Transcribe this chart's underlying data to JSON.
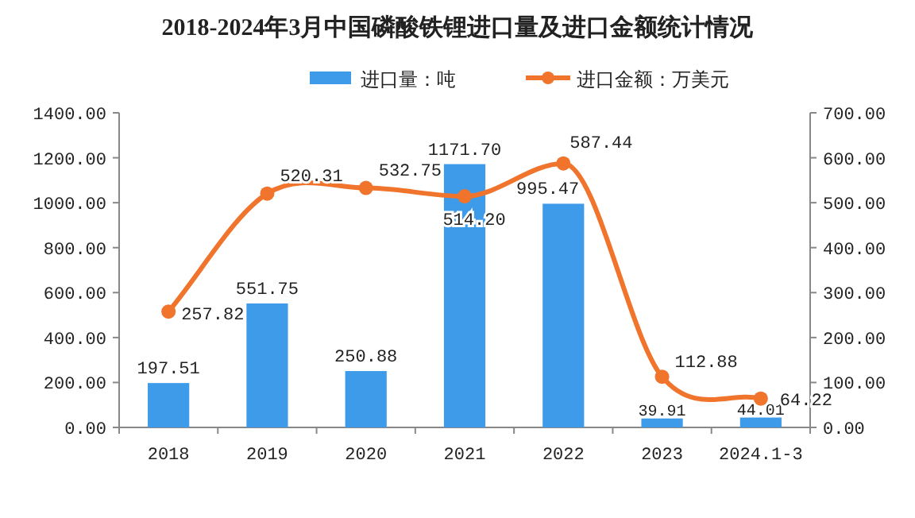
{
  "chart_data": {
    "type": "bar",
    "title": "2018-2024年3月中国磷酸铁锂进口量及进口金额统计情况",
    "categories": [
      "2018",
      "2019",
      "2020",
      "2021",
      "2022",
      "2023",
      "2024.1-3"
    ],
    "series": [
      {
        "name": "进口量：吨",
        "color": "#3d9be9",
        "values": [
          197.51,
          551.75,
          250.88,
          1171.7,
          995.47,
          39.91,
          44.01
        ],
        "value_labels": [
          "197.51",
          "551.75",
          "250.88",
          "1171.70",
          "995.47",
          "39.91",
          "44.01"
        ]
      },
      {
        "name": "进口金额：万美元",
        "type": "line",
        "axis": "y2",
        "marker": "circle",
        "color": "#f0742c",
        "values": [
          257.82,
          520.31,
          532.75,
          514.2,
          587.44,
          112.88,
          64.22
        ],
        "value_labels": [
          "257.82",
          "520.31",
          "532.75",
          "514.20",
          "587.44",
          "112.88",
          "64.22"
        ]
      }
    ],
    "ylim": [
      0,
      1400
    ],
    "yticks": [
      {
        "value": 0,
        "label": "0.00"
      },
      {
        "value": 200,
        "label": "200.00"
      },
      {
        "value": 400,
        "label": "400.00"
      },
      {
        "value": 600,
        "label": "600.00"
      },
      {
        "value": 800,
        "label": "800.00"
      },
      {
        "value": 1000,
        "label": "1000.00"
      },
      {
        "value": 1200,
        "label": "1200.00"
      },
      {
        "value": 1400,
        "label": "1400.00"
      }
    ],
    "y2lim": [
      0,
      700
    ],
    "y2ticks": [
      {
        "value": 0,
        "label": "0.00"
      },
      {
        "value": 100,
        "label": "100.00"
      },
      {
        "value": 200,
        "label": "200.00"
      },
      {
        "value": 300,
        "label": "300.00"
      },
      {
        "value": 400,
        "label": "400.00"
      },
      {
        "value": 500,
        "label": "500.00"
      },
      {
        "value": 600,
        "label": "600.00"
      },
      {
        "value": 700,
        "label": "700.00"
      }
    ],
    "legend": "top"
  }
}
